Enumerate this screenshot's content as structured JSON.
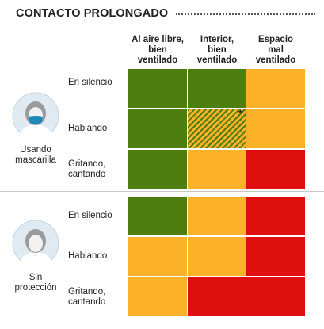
{
  "title": "CONTACTO PROLONGADO",
  "columns": [
    {
      "label_lines": [
        "Al aire libre,",
        "bien",
        "ventilado"
      ]
    },
    {
      "label_lines": [
        "Interior,",
        "bien",
        "ventilado"
      ]
    },
    {
      "label_lines": [
        "Espacio",
        "mal",
        "ventilado"
      ]
    }
  ],
  "groups": [
    {
      "label_lines": [
        "Usando",
        "mascarilla"
      ],
      "icon": "person-with-mask-icon",
      "rows": [
        {
          "label_lines": [
            "En silencio"
          ],
          "cells": [
            "green",
            "green",
            "amber"
          ]
        },
        {
          "label_lines": [
            "Hablando"
          ],
          "cells": [
            "green",
            "hatched",
            "amber"
          ]
        },
        {
          "label_lines": [
            "Gritando,",
            "cantando"
          ],
          "cells": [
            "green",
            "amber",
            "red"
          ]
        }
      ]
    },
    {
      "label_lines": [
        "Sin",
        "protección"
      ],
      "icon": "person-without-mask-icon",
      "rows": [
        {
          "label_lines": [
            "En silencio"
          ],
          "cells": [
            "green",
            "amber",
            "red"
          ]
        },
        {
          "label_lines": [
            "Hablando"
          ],
          "cells": [
            "amber",
            "amber",
            "red"
          ]
        },
        {
          "label_lines": [
            "Gritando,",
            "cantando"
          ],
          "cells": [
            "amber",
            "red",
            "red"
          ]
        }
      ]
    }
  ],
  "footnote_marker": "*",
  "colors": {
    "green": "#4e7e0f",
    "amber": "#fbb128",
    "red": "#e00f0f",
    "hatched": "green-amber stripes"
  },
  "chart_data": {
    "type": "heatmap",
    "title": "CONTACTO PROLONGADO",
    "x_categories": [
      "Al aire libre, bien ventilado",
      "Interior, bien ventilado",
      "Espacio mal ventilado"
    ],
    "y_groups": [
      "Usando mascarilla",
      "Sin protección"
    ],
    "y_categories": [
      "En silencio",
      "Hablando",
      "Gritando, cantando"
    ],
    "values": [
      [
        "green",
        "green",
        "amber"
      ],
      [
        "green",
        "hatched",
        "amber"
      ],
      [
        "green",
        "amber",
        "red"
      ],
      [
        "green",
        "amber",
        "red"
      ],
      [
        "amber",
        "amber",
        "red"
      ],
      [
        "amber",
        "red",
        "red"
      ]
    ]
  }
}
